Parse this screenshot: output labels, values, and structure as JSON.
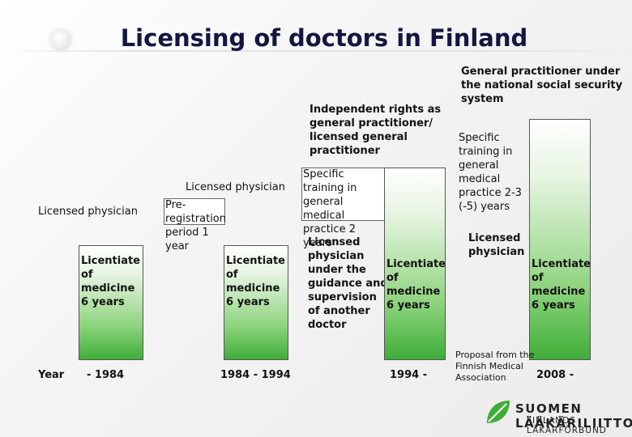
{
  "title": "Licensing of doctors in Finland",
  "colors": {
    "title": "#13163f",
    "bar_green": "#3fae38",
    "bar_light": "#e5f4e0"
  },
  "stage1": {
    "heading": "Licensed physician",
    "bar_label": "Licentiate of medicine 6 years"
  },
  "stage2": {
    "heading": "Licensed physician",
    "box_label": "Pre-registration period 1 year",
    "bar_label": "Licentiate of medicine 6 years"
  },
  "stage3": {
    "heading": "Independent rights as general practitioner/ licensed general practitioner",
    "box_label": "Specific training in general medical practice 2 years",
    "supervision_label": "Licensed physician under the guidance and supervision of another doctor",
    "bar_label": "Licentiate of medicine 6 years"
  },
  "stage4": {
    "heading": "General practitioner under the national social security system",
    "box_label": "Specific training in general medical practice 2-3 (-5) years",
    "licensed_label": "Licensed physician",
    "bar_label": "Licentiate of medicine 6 years"
  },
  "timeline": {
    "year_label": "Year",
    "period1": "- 1984",
    "period2": "1984 - 1994",
    "period3": "1994 -",
    "proposal": "Proposal from the Finnish Medical Association",
    "period4": "2008 -"
  },
  "logo": {
    "icon": "leaf-logo-icon",
    "name_fi": "SUOMEN LÄÄKÄRILIITTO",
    "name_sv": "FINLANDS LÄKARFÖRBUND"
  }
}
